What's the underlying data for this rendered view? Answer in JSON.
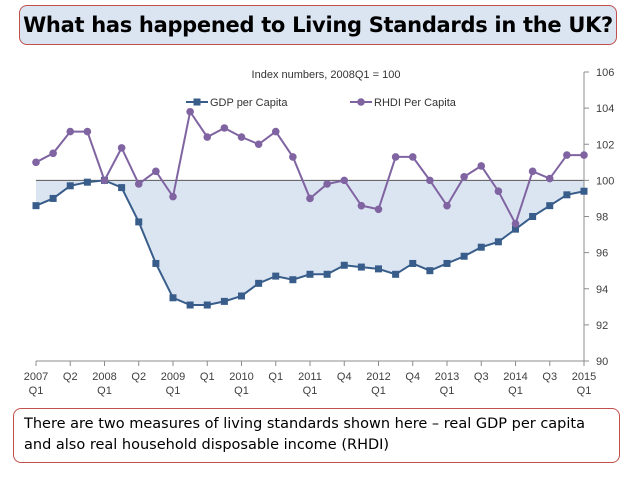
{
  "title": "What has happened to Living Standards in the UK?",
  "caption": "There are two measures of living standards shown here – real GDP per capita and also real household disposable income (RHDI)",
  "chart_data": {
    "type": "line",
    "subtitle": "Index numbers, 2008Q1 = 100",
    "x": [
      "2007 Q1",
      "2007 Q2",
      "2007 Q3",
      "2007 Q4",
      "2008 Q1",
      "2008 Q2",
      "2008 Q3",
      "2008 Q4",
      "2009 Q1",
      "2009 Q2",
      "2009 Q3",
      "2009 Q4",
      "2010 Q1",
      "2010 Q2",
      "2010 Q3",
      "2010 Q4",
      "2011 Q1",
      "2011 Q2",
      "2011 Q3",
      "2011 Q4",
      "2012 Q1",
      "2012 Q2",
      "2012 Q3",
      "2012 Q4",
      "2013 Q1",
      "2013 Q2",
      "2013 Q3",
      "2013 Q4",
      "2014 Q1",
      "2014 Q2",
      "2014 Q3",
      "2014 Q4",
      "2015 Q1"
    ],
    "x_tick_labels": [
      {
        "top": "2007",
        "bottom": "Q1"
      },
      {
        "top": "Q2",
        "bottom": ""
      },
      {
        "top": "2008",
        "bottom": "Q1"
      },
      {
        "top": "Q2",
        "bottom": ""
      },
      {
        "top": "2009",
        "bottom": "Q1"
      },
      {
        "top": "Q1",
        "bottom": ""
      },
      {
        "top": "2010",
        "bottom": "Q1"
      },
      {
        "top": "Q1",
        "bottom": ""
      },
      {
        "top": "2011",
        "bottom": "Q1"
      },
      {
        "top": "Q4",
        "bottom": ""
      },
      {
        "top": "2012",
        "bottom": "Q1"
      },
      {
        "top": "Q4",
        "bottom": ""
      },
      {
        "top": "2013",
        "bottom": "Q1"
      },
      {
        "top": "Q3",
        "bottom": ""
      },
      {
        "top": "2014",
        "bottom": "Q1"
      },
      {
        "top": "Q3",
        "bottom": ""
      },
      {
        "top": "2015",
        "bottom": "Q1"
      }
    ],
    "y_ticks": [
      90,
      92,
      94,
      96,
      98,
      100,
      102,
      104,
      106
    ],
    "ylim": [
      90,
      106
    ],
    "y_axis_side": "right",
    "baseline": 100,
    "legend_position": "top-center",
    "series": [
      {
        "name": "GDP per Capita",
        "color": "#385d8a",
        "marker": "square",
        "values": [
          98.6,
          99.0,
          99.7,
          99.9,
          100.0,
          99.6,
          97.7,
          95.4,
          93.5,
          93.1,
          93.1,
          93.3,
          93.6,
          94.3,
          94.7,
          94.5,
          94.8,
          94.8,
          95.3,
          95.2,
          95.1,
          94.8,
          95.4,
          95.0,
          95.4,
          95.8,
          96.3,
          96.6,
          97.3,
          98.0,
          98.6,
          99.2,
          99.4
        ]
      },
      {
        "name": "RHDI Per Capita",
        "color": "#8064a2",
        "marker": "circle",
        "values": [
          101.0,
          101.5,
          102.7,
          102.7,
          100.0,
          101.8,
          99.8,
          100.5,
          99.1,
          103.8,
          102.4,
          102.9,
          102.4,
          102.0,
          102.7,
          101.3,
          99.0,
          99.8,
          100.0,
          98.6,
          98.4,
          101.3,
          101.3,
          100.0,
          98.6,
          100.2,
          100.8,
          99.4,
          97.6,
          100.5,
          100.1,
          101.4,
          101.4
        ]
      }
    ],
    "fill_color": "#dbe5f1"
  }
}
